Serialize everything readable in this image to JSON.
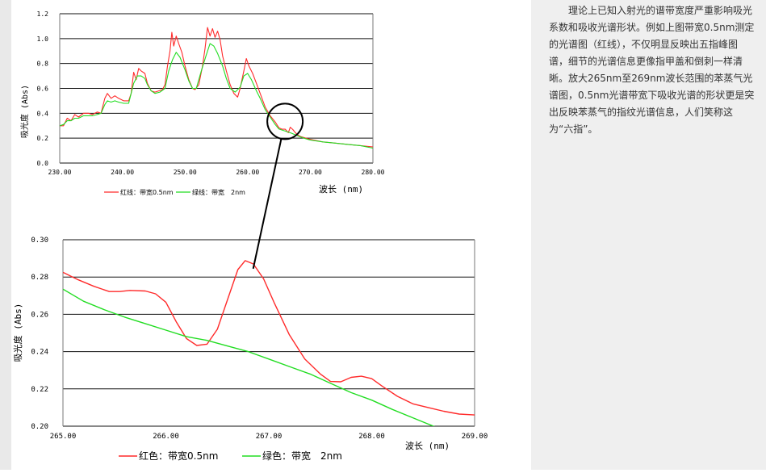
{
  "chart_data": [
    {
      "type": "line",
      "xlabel": "",
      "x_axis_caption": "波长 (nm)",
      "ylabel": "吸光度 (Abs)",
      "xlim": [
        230,
        280
      ],
      "ylim": [
        0,
        1.2
      ],
      "grid": true,
      "legend_position": "bottom-left",
      "xticks": [
        "230.00",
        "240.00",
        "250.00",
        "260.00",
        "270.00",
        "280.00"
      ],
      "yticks": [
        "0.0",
        "0.2",
        "0.4",
        "0.6",
        "0.8",
        "1.0",
        "1.2"
      ],
      "series": [
        {
          "name": "红线：带宽0.5nm",
          "color": "#ff2a2a",
          "points": [
            [
              230,
              0.3
            ],
            [
              230.6,
              0.3
            ],
            [
              231.2,
              0.36
            ],
            [
              231.8,
              0.34
            ],
            [
              232.4,
              0.39
            ],
            [
              233,
              0.37
            ],
            [
              233.8,
              0.4
            ],
            [
              234.6,
              0.4
            ],
            [
              235.2,
              0.39
            ],
            [
              236,
              0.41
            ],
            [
              236.6,
              0.4
            ],
            [
              237.2,
              0.52
            ],
            [
              237.6,
              0.56
            ],
            [
              238.2,
              0.52
            ],
            [
              238.8,
              0.54
            ],
            [
              239.4,
              0.52
            ],
            [
              240.2,
              0.5
            ],
            [
              241,
              0.5
            ],
            [
              241.4,
              0.56
            ],
            [
              241.8,
              0.73
            ],
            [
              242.2,
              0.67
            ],
            [
              242.6,
              0.76
            ],
            [
              243,
              0.74
            ],
            [
              243.6,
              0.72
            ],
            [
              244,
              0.64
            ],
            [
              244.6,
              0.58
            ],
            [
              245.2,
              0.57
            ],
            [
              245.8,
              0.58
            ],
            [
              246.4,
              0.59
            ],
            [
              246.8,
              0.63
            ],
            [
              247.2,
              0.78
            ],
            [
              247.6,
              0.9
            ],
            [
              247.9,
              1.05
            ],
            [
              248.2,
              0.94
            ],
            [
              248.6,
              1.02
            ],
            [
              249,
              0.96
            ],
            [
              249.5,
              0.89
            ],
            [
              250,
              0.78
            ],
            [
              250.6,
              0.67
            ],
            [
              251.2,
              0.6
            ],
            [
              251.6,
              0.59
            ],
            [
              252.2,
              0.63
            ],
            [
              252.8,
              0.78
            ],
            [
              253.2,
              0.92
            ],
            [
              253.6,
              1.09
            ],
            [
              254,
              1.02
            ],
            [
              254.4,
              1.08
            ],
            [
              254.8,
              1.01
            ],
            [
              255.2,
              1.06
            ],
            [
              255.6,
              0.99
            ],
            [
              256,
              0.86
            ],
            [
              256.6,
              0.74
            ],
            [
              257.2,
              0.63
            ],
            [
              257.8,
              0.56
            ],
            [
              258.4,
              0.53
            ],
            [
              258.8,
              0.6
            ],
            [
              259.4,
              0.74
            ],
            [
              259.8,
              0.84
            ],
            [
              260.2,
              0.78
            ],
            [
              260.8,
              0.72
            ],
            [
              261.4,
              0.64
            ],
            [
              262,
              0.56
            ],
            [
              262.8,
              0.45
            ],
            [
              263.6,
              0.38
            ],
            [
              264.4,
              0.33
            ],
            [
              265,
              0.283
            ],
            [
              265.5,
              0.272
            ],
            [
              266,
              0.272
            ],
            [
              266.5,
              0.244
            ],
            [
              266.8,
              0.288
            ],
            [
              267.2,
              0.27
            ],
            [
              267.6,
              0.245
            ],
            [
              268,
              0.226
            ],
            [
              268.5,
              0.212
            ],
            [
              269,
              0.205
            ],
            [
              270,
              0.19
            ],
            [
              272,
              0.17
            ],
            [
              274,
              0.16
            ],
            [
              276,
              0.15
            ],
            [
              278,
              0.14
            ],
            [
              280,
              0.13
            ]
          ]
        },
        {
          "name": "绿线：带宽　2nm",
          "color": "#22dd22",
          "points": [
            [
              230,
              0.3
            ],
            [
              230.6,
              0.31
            ],
            [
              231.2,
              0.34
            ],
            [
              231.8,
              0.34
            ],
            [
              232.4,
              0.36
            ],
            [
              233,
              0.36
            ],
            [
              233.8,
              0.38
            ],
            [
              234.6,
              0.38
            ],
            [
              235.2,
              0.38
            ],
            [
              236,
              0.39
            ],
            [
              236.6,
              0.4
            ],
            [
              237.2,
              0.47
            ],
            [
              237.6,
              0.5
            ],
            [
              238.2,
              0.49
            ],
            [
              238.8,
              0.5
            ],
            [
              239.4,
              0.49
            ],
            [
              240.2,
              0.48
            ],
            [
              241,
              0.48
            ],
            [
              241.8,
              0.64
            ],
            [
              242.4,
              0.7
            ],
            [
              243,
              0.7
            ],
            [
              243.6,
              0.68
            ],
            [
              244,
              0.63
            ],
            [
              244.6,
              0.58
            ],
            [
              245.2,
              0.56
            ],
            [
              246,
              0.57
            ],
            [
              246.8,
              0.6
            ],
            [
              247.4,
              0.74
            ],
            [
              248,
              0.83
            ],
            [
              248.6,
              0.89
            ],
            [
              249.2,
              0.85
            ],
            [
              250,
              0.75
            ],
            [
              250.6,
              0.66
            ],
            [
              251.2,
              0.6
            ],
            [
              251.8,
              0.6
            ],
            [
              252.6,
              0.74
            ],
            [
              253.4,
              0.87
            ],
            [
              254,
              0.96
            ],
            [
              254.6,
              0.94
            ],
            [
              255.2,
              0.88
            ],
            [
              256,
              0.78
            ],
            [
              256.6,
              0.68
            ],
            [
              257.2,
              0.6
            ],
            [
              258,
              0.57
            ],
            [
              258.8,
              0.61
            ],
            [
              259.4,
              0.7
            ],
            [
              260,
              0.72
            ],
            [
              260.6,
              0.67
            ],
            [
              261.4,
              0.58
            ],
            [
              262,
              0.52
            ],
            [
              262.8,
              0.43
            ],
            [
              263.6,
              0.37
            ],
            [
              264.4,
              0.31
            ],
            [
              265,
              0.273
            ],
            [
              266,
              0.257
            ],
            [
              267,
              0.24
            ],
            [
              268,
              0.218
            ],
            [
              269,
              0.2
            ],
            [
              270,
              0.185
            ],
            [
              272,
              0.17
            ],
            [
              274,
              0.16
            ],
            [
              276,
              0.15
            ],
            [
              278,
              0.14
            ],
            [
              280,
              0.12
            ]
          ]
        }
      ]
    },
    {
      "type": "line",
      "xlabel": "",
      "x_axis_caption": "波长 (nm)",
      "ylabel": "吸光度 (Abs)",
      "xlim": [
        265,
        269
      ],
      "ylim": [
        0.2,
        0.3
      ],
      "grid": true,
      "legend_position": "bottom",
      "xticks": [
        "265.00",
        "266.00",
        "267.00",
        "268.00",
        "269.00"
      ],
      "yticks": [
        "0.20",
        "0.22",
        "0.24",
        "0.26",
        "0.28",
        "0.30"
      ],
      "series": [
        {
          "name": "红色：带宽0.5nm",
          "color": "#ff2a2a",
          "points": [
            [
              265,
              0.2825
            ],
            [
              265.15,
              0.2785
            ],
            [
              265.3,
              0.275
            ],
            [
              265.45,
              0.2722
            ],
            [
              265.55,
              0.2722
            ],
            [
              265.65,
              0.2728
            ],
            [
              265.8,
              0.2725
            ],
            [
              265.9,
              0.271
            ],
            [
              266.0,
              0.2665
            ],
            [
              266.1,
              0.256
            ],
            [
              266.2,
              0.247
            ],
            [
              266.3,
              0.2433
            ],
            [
              266.4,
              0.244
            ],
            [
              266.5,
              0.252
            ],
            [
              266.6,
              0.268
            ],
            [
              266.7,
              0.284
            ],
            [
              266.77,
              0.2888
            ],
            [
              266.85,
              0.287
            ],
            [
              266.95,
              0.279
            ],
            [
              267.05,
              0.2665
            ],
            [
              267.2,
              0.249
            ],
            [
              267.35,
              0.236
            ],
            [
              267.5,
              0.228
            ],
            [
              267.6,
              0.224
            ],
            [
              267.7,
              0.2238
            ],
            [
              267.8,
              0.2262
            ],
            [
              267.9,
              0.2268
            ],
            [
              268.0,
              0.2255
            ],
            [
              268.1,
              0.2215
            ],
            [
              268.25,
              0.216
            ],
            [
              268.4,
              0.212
            ],
            [
              268.55,
              0.21
            ],
            [
              268.7,
              0.208
            ],
            [
              268.85,
              0.2065
            ],
            [
              269.0,
              0.206
            ]
          ]
        },
        {
          "name": "绿色：带宽　2nm",
          "color": "#22dd22",
          "points": [
            [
              265,
              0.2735
            ],
            [
              265.2,
              0.267
            ],
            [
              265.4,
              0.2625
            ],
            [
              265.6,
              0.2585
            ],
            [
              265.8,
              0.255
            ],
            [
              266.0,
              0.2515
            ],
            [
              266.2,
              0.248
            ],
            [
              266.4,
              0.246
            ],
            [
              266.6,
              0.243
            ],
            [
              266.8,
              0.24
            ],
            [
              267.0,
              0.236
            ],
            [
              267.2,
              0.232
            ],
            [
              267.4,
              0.228
            ],
            [
              267.6,
              0.223
            ],
            [
              267.8,
              0.218
            ],
            [
              268.0,
              0.214
            ],
            [
              268.2,
              0.209
            ],
            [
              268.4,
              0.2045
            ],
            [
              268.6,
              0.2
            ],
            [
              268.8,
              0.1955
            ],
            [
              269.0,
              0.191
            ]
          ]
        }
      ]
    }
  ],
  "annotation": {
    "circle_center": [
      267,
      0.27
    ],
    "label": ""
  },
  "side_text": "理论上已知入射光的谱带宽度严重影响吸光系数和吸收光谱形状。例如上图带宽0.5nm测定的光谱图（红线），不仅明显反映出五指峰图谱，细节的光谱信息更像指甲盖和倒刺一样清晰。放大265nm至269nm波长范围的苯蒸气光谱图，0.5nm光谱带宽下吸收光谱的形状更是突出反映苯蒸气的指纹光谱信息，人们笑称这为“六指”。"
}
